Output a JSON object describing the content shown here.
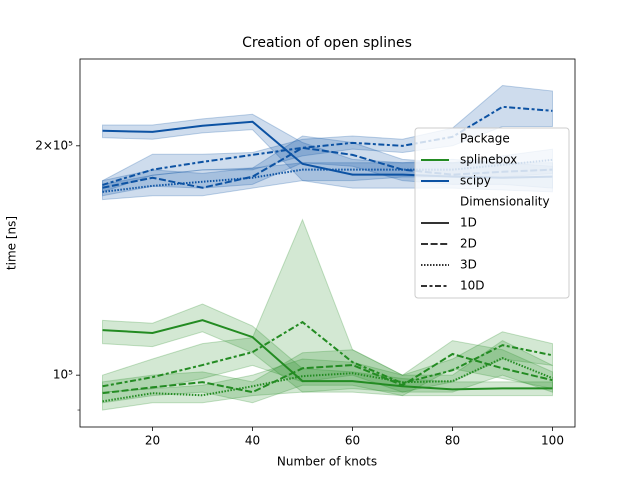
{
  "chart_data": {
    "type": "line",
    "title": "Creation of open splines",
    "x_label": "Number of knots",
    "y_label": "time [ns]",
    "x": [
      10,
      20,
      30,
      40,
      50,
      60,
      70,
      80,
      90,
      100
    ],
    "xlim": [
      5.5,
      104.5
    ],
    "xticks": [
      20,
      40,
      60,
      80,
      100
    ],
    "y_scale": "log",
    "ylim": [
      85500,
      260000
    ],
    "yticks": [
      {
        "value": 100000,
        "label": "10⁵"
      },
      {
        "value": 200000,
        "label": "2×10⁵"
      }
    ],
    "yminorticks": [
      90000
    ],
    "legend_position": "center right",
    "hue": {
      "title": "Package",
      "levels": [
        {
          "name": "splinebox",
          "color": "#238b22"
        },
        {
          "name": "scipy",
          "color": "#0c52a3"
        }
      ]
    },
    "style": {
      "title": "Dimensionality",
      "levels": [
        {
          "name": "1D",
          "dash": "solid"
        },
        {
          "name": "2D",
          "dash": "dashed"
        },
        {
          "name": "3D",
          "dash": "dotted"
        },
        {
          "name": "10D",
          "dash": "dashdot"
        }
      ]
    },
    "series": [
      {
        "hue": 1,
        "style": 0,
        "values": [
          209300,
          208600,
          212500,
          215100,
          189400,
          183300,
          183300,
          182200,
          181600,
          182200
        ],
        "ci_lower": [
          205000,
          204000,
          208000,
          210000,
          180000,
          176000,
          176000,
          176000,
          175000,
          174000
        ],
        "ci_upper": [
          213000,
          213000,
          217000,
          220000,
          202000,
          192000,
          190000,
          192000,
          190000,
          190000
        ]
      },
      {
        "hue": 1,
        "style": 1,
        "values": [
          176200,
          181600,
          176200,
          182200,
          198800,
          194600,
          186100,
          183300,
          184900,
          186100
        ],
        "ci_lower": [
          172000,
          177000,
          176000,
          178000,
          190000,
          188000,
          180000,
          178000,
          178000,
          176000
        ],
        "ci_upper": [
          180000,
          186000,
          184000,
          187000,
          206000,
          202000,
          192000,
          190000,
          190000,
          188000
        ]
      },
      {
        "hue": 1,
        "style": 2,
        "values": [
          174000,
          177200,
          179400,
          181600,
          186100,
          186100,
          186100,
          186100,
          188800,
          191700
        ],
        "ci_lower": [
          170000,
          172000,
          172000,
          176000,
          180000,
          180000,
          182000,
          182000,
          182000,
          184000
        ],
        "ci_upper": [
          178000,
          183000,
          186000,
          187000,
          190000,
          190000,
          190000,
          190000,
          194000,
          198000
        ]
      },
      {
        "hue": 1,
        "style": 3,
        "values": [
          177700,
          186100,
          190500,
          194600,
          198800,
          201800,
          200000,
          205500,
          225000,
          222300
        ],
        "ci_lower": [
          174000,
          183000,
          186000,
          186000,
          194000,
          198000,
          196000,
          200000,
          212000,
          212000
        ],
        "ci_upper": [
          180000,
          195000,
          195000,
          196000,
          204000,
          206000,
          204000,
          211000,
          240000,
          236000
        ]
      },
      {
        "hue": 0,
        "style": 0,
        "values": [
          114600,
          113600,
          118100,
          112200,
          98200,
          98200,
          96700,
          95800,
          96100,
          96100
        ],
        "ci_lower": [
          110000,
          109000,
          114000,
          107000,
          95000,
          95000,
          94000,
          94000,
          94000,
          94000
        ],
        "ci_upper": [
          118000,
          117000,
          124000,
          116000,
          102000,
          101000,
          99000,
          98000,
          98000,
          98000
        ]
      },
      {
        "hue": 0,
        "style": 1,
        "values": [
          94700,
          96400,
          97900,
          95000,
          102100,
          103100,
          97000,
          106600,
          102100,
          98500
        ],
        "ci_lower": [
          92000,
          94000,
          95000,
          92000,
          97000,
          97000,
          94000,
          102000,
          99000,
          96000
        ],
        "ci_upper": [
          98000,
          100000,
          101000,
          98000,
          107000,
          108000,
          100000,
          111000,
          108000,
          101000
        ]
      },
      {
        "hue": 0,
        "style": 2,
        "values": [
          92400,
          94700,
          94100,
          96700,
          99700,
          100600,
          97900,
          98200,
          105300,
          99100
        ],
        "ci_lower": [
          90000,
          92000,
          92000,
          94000,
          95000,
          96000,
          95000,
          95000,
          100000,
          95000
        ],
        "ci_upper": [
          95000,
          96000,
          97000,
          100000,
          105000,
          104000,
          100000,
          100000,
          111000,
          103000
        ]
      },
      {
        "hue": 0,
        "style": 3,
        "values": [
          96700,
          99400,
          103100,
          107200,
          117400,
          104000,
          97600,
          101500,
          109500,
          106200
        ],
        "ci_lower": [
          95000,
          96000,
          99000,
          103000,
          98000,
          100000,
          95000,
          98000,
          105000,
          103000
        ],
        "ci_upper": [
          100000,
          105000,
          110000,
          112000,
          160000,
          108000,
          100000,
          105000,
          114000,
          110000
        ]
      }
    ]
  }
}
